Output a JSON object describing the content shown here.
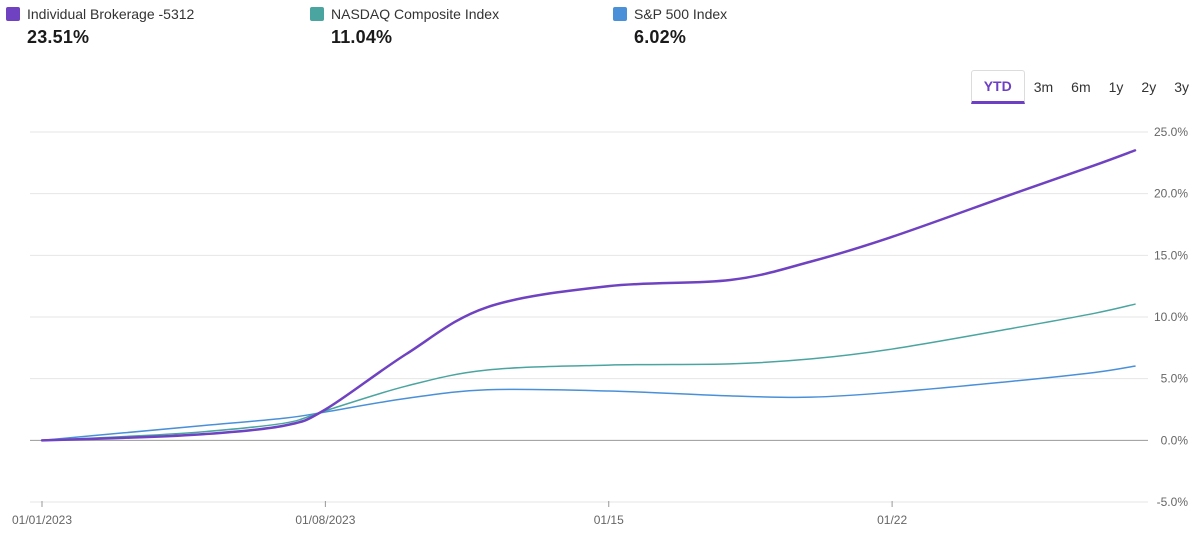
{
  "legend": [
    {
      "name": "Individual Brokerage -5312",
      "value": "23.51%",
      "color": "#6f42c1"
    },
    {
      "name": "NASDAQ Composite Index",
      "value": "11.04%",
      "color": "#4aa5a0"
    },
    {
      "name": "S&P 500 Index",
      "value": "6.02%",
      "color": "#4a90d9"
    }
  ],
  "ranges": [
    "YTD",
    "3m",
    "6m",
    "1y",
    "2y",
    "3y"
  ],
  "active_range": "YTD",
  "chart_data": {
    "type": "line",
    "title": "",
    "xlabel": "",
    "ylabel": "",
    "x": [
      0,
      2,
      4,
      6,
      7,
      9,
      11,
      14,
      17,
      19,
      21,
      24,
      26,
      27
    ],
    "x_ticks": [
      {
        "value": 0,
        "label": "01/01/2023"
      },
      {
        "value": 7,
        "label": "01/08/2023"
      },
      {
        "value": 14,
        "label": "01/15"
      },
      {
        "value": 21,
        "label": "01/22"
      }
    ],
    "xlim": [
      0,
      27
    ],
    "ylim": [
      -5,
      25
    ],
    "y_ticks": [
      25,
      20,
      15,
      10,
      5,
      0,
      -5
    ],
    "y_tick_labels": [
      "25.0%",
      "20.0%",
      "15.0%",
      "10.0%",
      "5.0%",
      "0.0%",
      "-5.0%"
    ],
    "grid": true,
    "series": [
      {
        "name": "Individual Brokerage -5312",
        "color": "#6f42c1",
        "width": 2.5,
        "values": [
          0,
          0.2,
          0.5,
          1.2,
          2.5,
          7.0,
          10.8,
          12.5,
          13.0,
          14.5,
          16.5,
          20.0,
          22.3,
          23.51
        ]
      },
      {
        "name": "NASDAQ Composite Index",
        "color": "#4aa5a0",
        "width": 1.5,
        "values": [
          0,
          0.3,
          0.7,
          1.4,
          2.4,
          4.4,
          5.7,
          6.1,
          6.2,
          6.6,
          7.4,
          9.1,
          10.3,
          11.04
        ]
      },
      {
        "name": "S&P 500 Index",
        "color": "#4a90d9",
        "width": 1.5,
        "values": [
          0,
          0.6,
          1.2,
          1.8,
          2.3,
          3.4,
          4.1,
          4.0,
          3.6,
          3.5,
          3.9,
          4.8,
          5.5,
          6.02
        ]
      }
    ]
  }
}
